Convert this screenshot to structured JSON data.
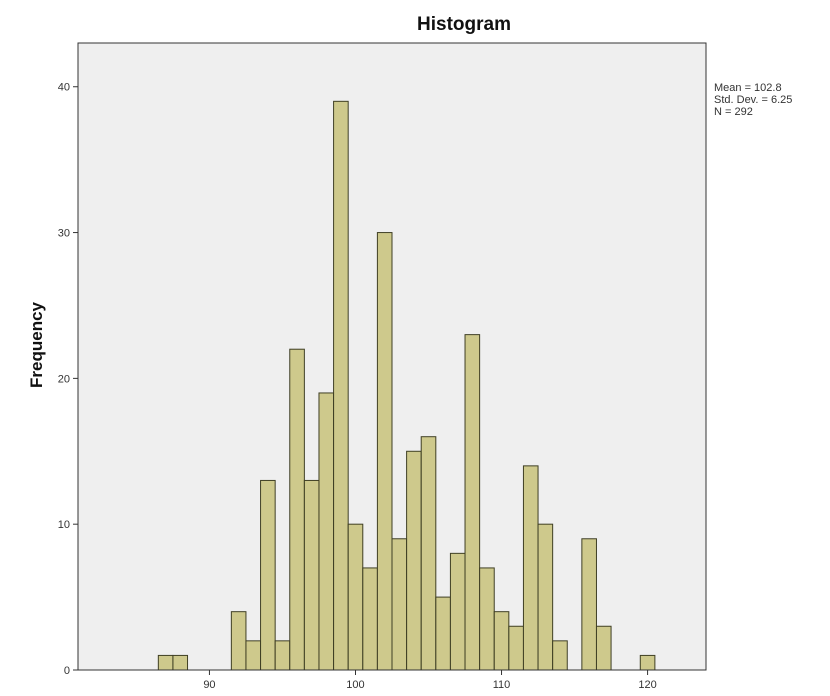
{
  "chart_data": {
    "type": "bar",
    "title": "Histogram",
    "xlabel": "",
    "ylabel": "Frequency",
    "xlim": [
      81,
      124
    ],
    "ylim": [
      0,
      43
    ],
    "x_ticks": [
      90,
      100,
      110,
      120
    ],
    "y_ticks": [
      0,
      10,
      20,
      30,
      40
    ],
    "bin_width": 1,
    "grid": false,
    "bins": [
      {
        "x": 87,
        "value": 1
      },
      {
        "x": 88,
        "value": 1
      },
      {
        "x": 92,
        "value": 4
      },
      {
        "x": 93,
        "value": 2
      },
      {
        "x": 94,
        "value": 13
      },
      {
        "x": 95,
        "value": 2
      },
      {
        "x": 96,
        "value": 22
      },
      {
        "x": 97,
        "value": 13
      },
      {
        "x": 98,
        "value": 19
      },
      {
        "x": 99,
        "value": 39
      },
      {
        "x": 100,
        "value": 10
      },
      {
        "x": 101,
        "value": 7
      },
      {
        "x": 102,
        "value": 30
      },
      {
        "x": 103,
        "value": 9
      },
      {
        "x": 104,
        "value": 15
      },
      {
        "x": 105,
        "value": 16
      },
      {
        "x": 106,
        "value": 5
      },
      {
        "x": 107,
        "value": 8
      },
      {
        "x": 108,
        "value": 23
      },
      {
        "x": 109,
        "value": 7
      },
      {
        "x": 110,
        "value": 4
      },
      {
        "x": 111,
        "value": 3
      },
      {
        "x": 112,
        "value": 14
      },
      {
        "x": 113,
        "value": 10
      },
      {
        "x": 114,
        "value": 2
      },
      {
        "x": 116,
        "value": 9
      },
      {
        "x": 117,
        "value": 3
      },
      {
        "x": 120,
        "value": 1
      }
    ],
    "stats": {
      "mean": "Mean = 102.8",
      "std_dev": "Std. Dev. = 6.25",
      "n": "N = 292"
    },
    "legend_placement": "top-right",
    "colors": {
      "plot_bg": "#efefef",
      "bar_fill": "#c8c27a",
      "bar_stroke": "#3f3f24",
      "frame": "#333333"
    }
  }
}
